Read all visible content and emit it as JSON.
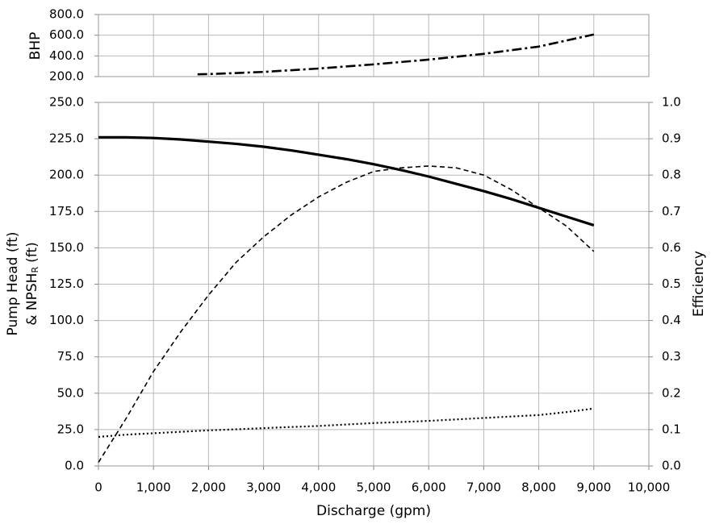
{
  "chart_data": [
    {
      "type": "line",
      "ylabel": "BHP",
      "xlim": [
        0,
        10000
      ],
      "ylim": [
        200,
        800
      ],
      "yticks": [
        {
          "value": 200,
          "label": "200.0"
        },
        {
          "value": 400,
          "label": "400.0"
        },
        {
          "value": 600,
          "label": "600.0"
        },
        {
          "value": 800,
          "label": "800.0"
        }
      ],
      "grid": true,
      "x": [
        1800,
        2000,
        3000,
        4000,
        5000,
        6000,
        7000,
        8000,
        9000
      ],
      "series": [
        {
          "color": "#000000",
          "style": "dashdot",
          "values": [
            222,
            224,
            245,
            278,
            318,
            364,
            420,
            490,
            607
          ]
        }
      ]
    },
    {
      "type": "line",
      "xlabel": "Discharge (gpm)",
      "ylabel": {
        "line1": "Pump Head (ft)",
        "line2": [
          "& NPSH",
          "R",
          "(ft)"
        ]
      },
      "y2label": "Efficiency",
      "xlim": [
        0,
        10000
      ],
      "xticks": [
        0,
        {
          "value": 1000,
          "label": "1,000"
        },
        {
          "value": 2000,
          "label": "2,000"
        },
        {
          "value": 3000,
          "label": "3,000"
        },
        {
          "value": 4000,
          "label": "4,000"
        },
        {
          "value": 5000,
          "label": "5,000"
        },
        {
          "value": 6000,
          "label": "6,000"
        },
        {
          "value": 7000,
          "label": "7,000"
        },
        {
          "value": 8000,
          "label": "8,000"
        },
        {
          "value": 9000,
          "label": "9,000"
        },
        {
          "value": 10000,
          "label": "10,000"
        }
      ],
      "ylim": [
        0,
        250
      ],
      "yticks": [
        {
          "value": 0,
          "label": "0.0"
        },
        {
          "value": 25,
          "label": "25.0"
        },
        {
          "value": 50,
          "label": "50.0"
        },
        {
          "value": 75,
          "label": "75.0"
        },
        {
          "value": 100,
          "label": "100.0"
        },
        {
          "value": 125,
          "label": "125.0"
        },
        {
          "value": 150,
          "label": "150.0"
        },
        {
          "value": 175,
          "label": "175.0"
        },
        {
          "value": 200,
          "label": "200.0"
        },
        {
          "value": 225,
          "label": "225.0"
        },
        {
          "value": 250,
          "label": "250.0"
        }
      ],
      "y2lim": [
        0,
        1
      ],
      "y2ticks": [
        {
          "value": 0,
          "label": "0.0"
        },
        0.1,
        0.2,
        0.3,
        0.4,
        0.5,
        0.6,
        0.7,
        0.8,
        0.9,
        {
          "value": 1,
          "label": "1.0"
        }
      ],
      "grid": true,
      "x": [
        0,
        500,
        1000,
        1500,
        2000,
        2500,
        3000,
        3500,
        4000,
        4500,
        5000,
        5500,
        6000,
        6500,
        7000,
        7500,
        8000,
        8500,
        9000
      ],
      "series": [
        {
          "color": "#000000",
          "style": "solid",
          "values": [
            226,
            226,
            225.5,
            224.5,
            223,
            221.5,
            219.5,
            217,
            214,
            211,
            207.5,
            203.5,
            199,
            194,
            189,
            183.5,
            177.5,
            171.5,
            165.5
          ]
        },
        {
          "color": "#000000",
          "style": "dashed",
          "axis": "y2",
          "values": [
            0.01,
            0.13,
            0.26,
            0.37,
            0.47,
            0.56,
            0.63,
            0.69,
            0.74,
            0.78,
            0.81,
            0.82,
            0.825,
            0.82,
            0.8,
            0.76,
            0.71,
            0.66,
            0.59
          ]
        },
        {
          "color": "#000000",
          "style": "dotted",
          "values": [
            20,
            21.5,
            22.5,
            23.5,
            24.5,
            25.2,
            26,
            26.8,
            27.5,
            28.5,
            29.5,
            30.2,
            31,
            32,
            33,
            34,
            35,
            37,
            39.5
          ]
        }
      ]
    }
  ]
}
